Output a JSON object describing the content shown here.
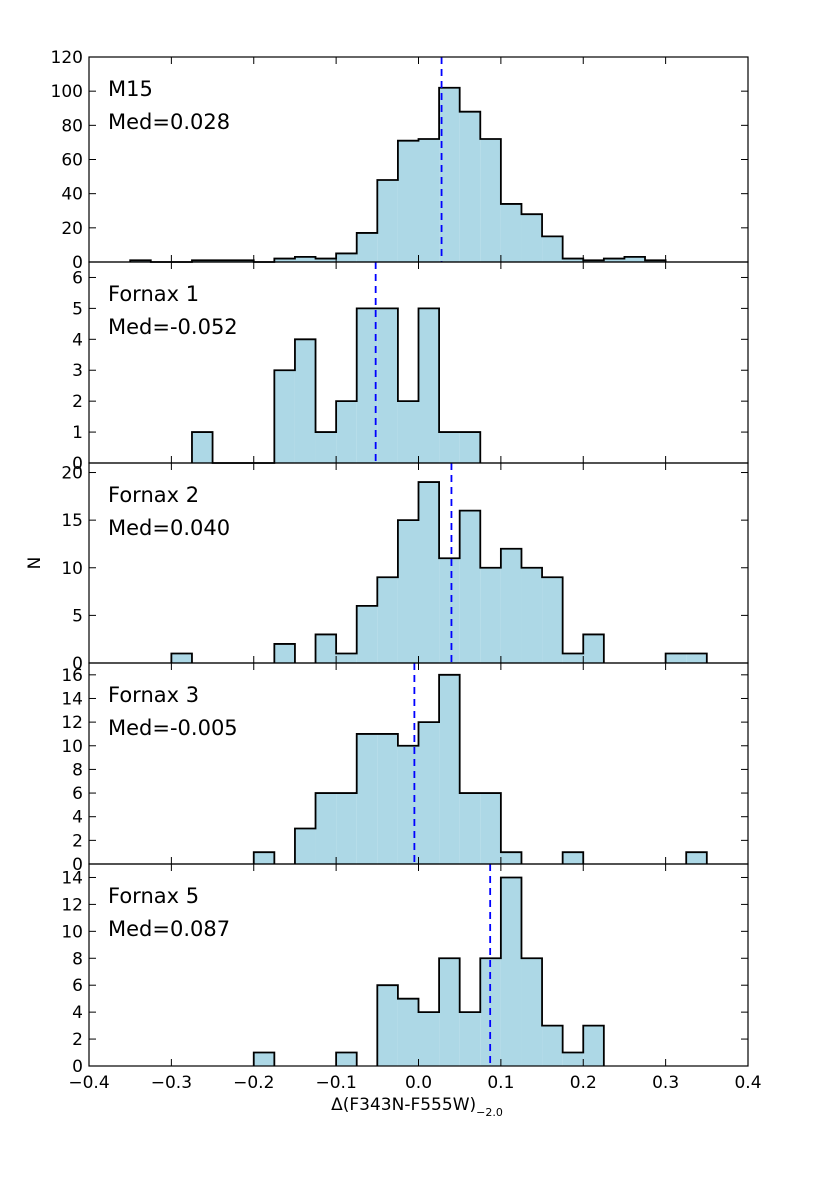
{
  "chart_data": {
    "type": "histogram",
    "xlabel": "Δ(F343N-F555W)",
    "xlabel_subscript": "−2.0",
    "ylabel": "N",
    "xlim": [
      -0.4,
      0.4
    ],
    "xticks": [
      -0.4,
      -0.3,
      -0.2,
      -0.1,
      0.0,
      0.1,
      0.2,
      0.3,
      0.4
    ],
    "xtick_labels": [
      "−0.4",
      "−0.3",
      "−0.2",
      "−0.1",
      "0.0",
      "0.1",
      "0.2",
      "0.3",
      "0.4"
    ],
    "bin_width": 0.025,
    "colors": {
      "fill": "#add8e6",
      "edge": "#000000",
      "median": "#0000ff"
    },
    "panels": [
      {
        "name": "M15",
        "median_label": "Med=0.028",
        "median": 0.028,
        "ylim": [
          0,
          120
        ],
        "yticks": [
          0,
          20,
          40,
          60,
          80,
          100,
          120
        ],
        "bins": [
          [
            -0.35,
            1
          ],
          [
            -0.325,
            0
          ],
          [
            -0.3,
            0
          ],
          [
            -0.275,
            1
          ],
          [
            -0.25,
            1
          ],
          [
            -0.225,
            1
          ],
          [
            -0.2,
            0
          ],
          [
            -0.175,
            2
          ],
          [
            -0.15,
            3
          ],
          [
            -0.125,
            2
          ],
          [
            -0.1,
            5
          ],
          [
            -0.075,
            17
          ],
          [
            -0.05,
            48
          ],
          [
            -0.025,
            71
          ],
          [
            0.0,
            72
          ],
          [
            0.025,
            102
          ],
          [
            0.05,
            88
          ],
          [
            0.075,
            72
          ],
          [
            0.1,
            34
          ],
          [
            0.125,
            28
          ],
          [
            0.15,
            15
          ],
          [
            0.175,
            2
          ],
          [
            0.2,
            1
          ],
          [
            0.225,
            2
          ],
          [
            0.25,
            3
          ],
          [
            0.275,
            1
          ]
        ]
      },
      {
        "name": "Fornax 1",
        "median_label": "Med=-0.052",
        "median": -0.052,
        "ylim": [
          0,
          6.5
        ],
        "yticks": [
          0,
          1,
          2,
          3,
          4,
          5,
          6
        ],
        "bins": [
          [
            -0.275,
            1
          ],
          [
            -0.25,
            0
          ],
          [
            -0.225,
            0
          ],
          [
            -0.2,
            0
          ],
          [
            -0.175,
            3
          ],
          [
            -0.15,
            4
          ],
          [
            -0.125,
            1
          ],
          [
            -0.1,
            2
          ],
          [
            -0.075,
            5
          ],
          [
            -0.05,
            5
          ],
          [
            -0.025,
            2
          ],
          [
            0.0,
            5
          ],
          [
            0.025,
            1
          ],
          [
            0.05,
            1
          ]
        ]
      },
      {
        "name": "Fornax 2",
        "median_label": "Med=0.040",
        "median": 0.04,
        "ylim": [
          0,
          21
        ],
        "yticks": [
          0,
          5,
          10,
          15,
          20
        ],
        "bins": [
          [
            -0.3,
            1
          ],
          [
            -0.175,
            2
          ],
          [
            -0.125,
            3
          ],
          [
            -0.1,
            1
          ],
          [
            -0.075,
            6
          ],
          [
            -0.05,
            9
          ],
          [
            -0.025,
            15
          ],
          [
            0.0,
            19
          ],
          [
            0.025,
            11
          ],
          [
            0.05,
            16
          ],
          [
            0.075,
            10
          ],
          [
            0.1,
            12
          ],
          [
            0.125,
            10
          ],
          [
            0.15,
            9
          ],
          [
            0.175,
            1
          ],
          [
            0.2,
            3
          ],
          [
            0.3,
            1
          ],
          [
            0.325,
            1
          ]
        ]
      },
      {
        "name": "Fornax 3",
        "median_label": "Med=-0.005",
        "median": -0.005,
        "ylim": [
          0,
          17
        ],
        "yticks": [
          0,
          2,
          4,
          6,
          8,
          10,
          12,
          14,
          16
        ],
        "bins": [
          [
            -0.2,
            1
          ],
          [
            -0.15,
            3
          ],
          [
            -0.125,
            6
          ],
          [
            -0.1,
            6
          ],
          [
            -0.075,
            11
          ],
          [
            -0.05,
            11
          ],
          [
            -0.025,
            10
          ],
          [
            0.0,
            12
          ],
          [
            0.025,
            16
          ],
          [
            0.05,
            6
          ],
          [
            0.075,
            6
          ],
          [
            0.1,
            1
          ],
          [
            0.175,
            1
          ],
          [
            0.325,
            1
          ]
        ]
      },
      {
        "name": "Fornax 5",
        "median_label": "Med=0.087",
        "median": 0.087,
        "ylim": [
          0,
          15
        ],
        "yticks": [
          0,
          2,
          4,
          6,
          8,
          10,
          12,
          14
        ],
        "bins": [
          [
            -0.2,
            1
          ],
          [
            -0.1,
            1
          ],
          [
            -0.05,
            6
          ],
          [
            -0.025,
            5
          ],
          [
            0.0,
            4
          ],
          [
            0.025,
            8
          ],
          [
            0.05,
            4
          ],
          [
            0.075,
            8
          ],
          [
            0.1,
            14
          ],
          [
            0.125,
            8
          ],
          [
            0.15,
            3
          ],
          [
            0.175,
            1
          ],
          [
            0.2,
            3
          ]
        ]
      }
    ]
  }
}
